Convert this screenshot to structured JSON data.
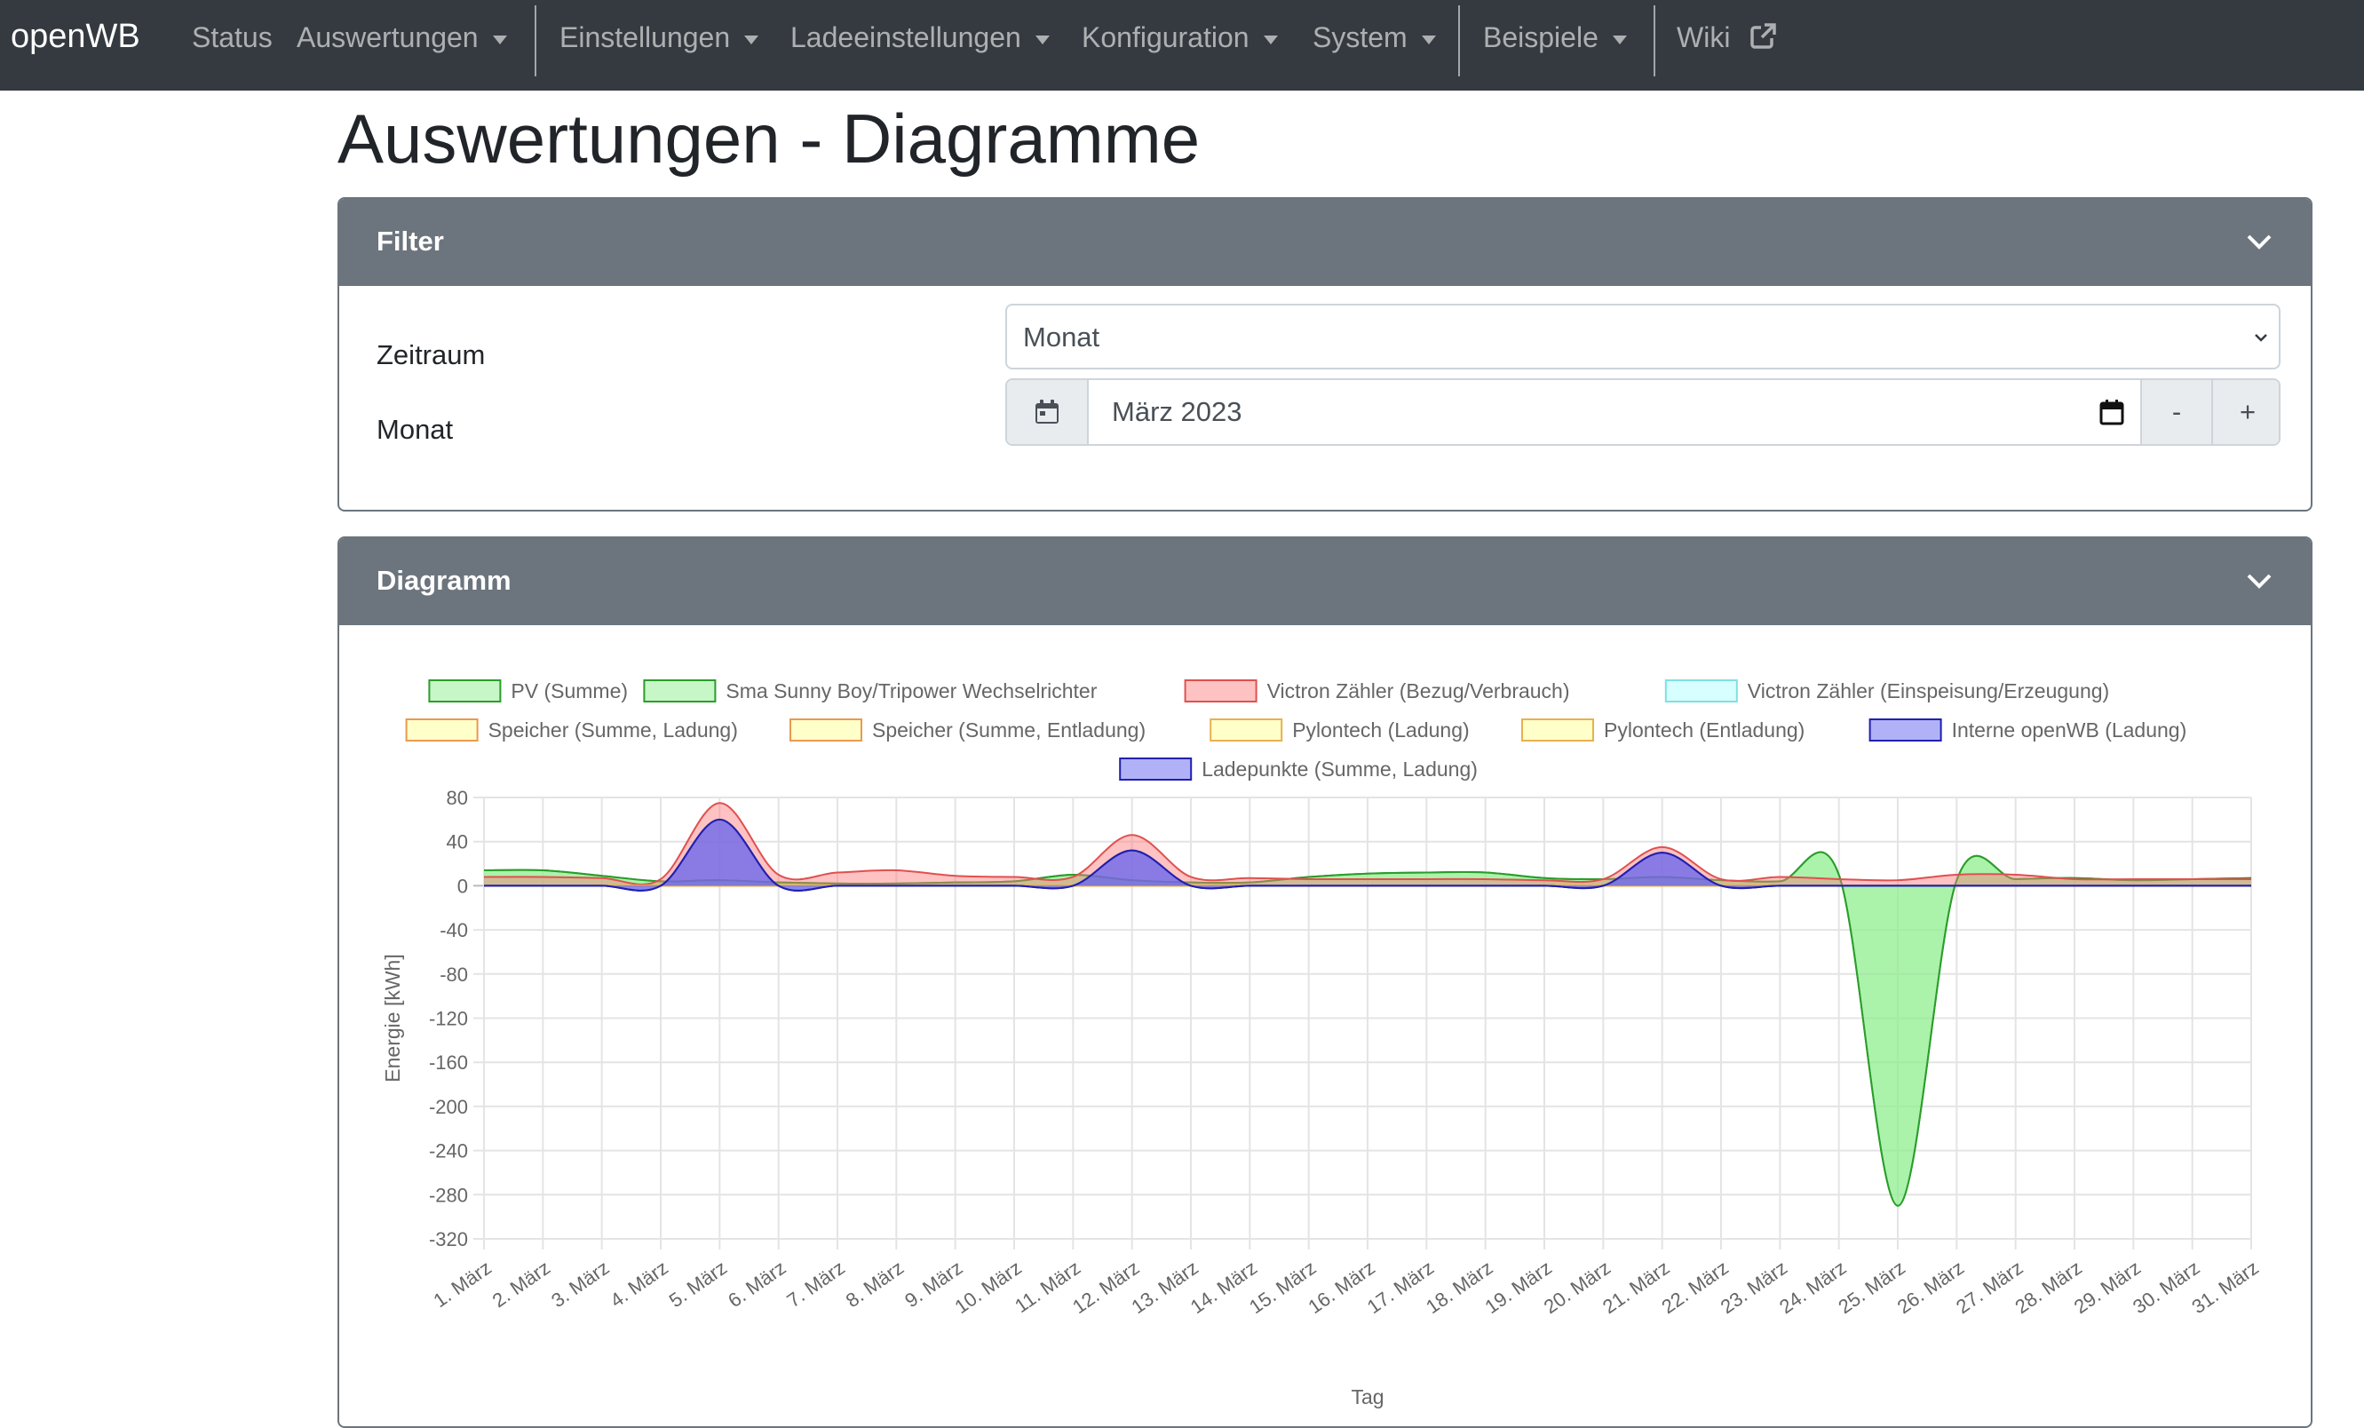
{
  "nav": {
    "brand": "openWB",
    "items": [
      {
        "label": "Status",
        "dropdown": false
      },
      {
        "label": "Auswertungen",
        "dropdown": true
      },
      {
        "label": "Einstellungen",
        "dropdown": true
      },
      {
        "label": "Ladeeinstellungen",
        "dropdown": true
      },
      {
        "label": "Konfiguration",
        "dropdown": true
      },
      {
        "label": "System",
        "dropdown": true
      },
      {
        "label": "Beispiele",
        "dropdown": true
      },
      {
        "label": "Wiki",
        "dropdown": false
      }
    ]
  },
  "page": {
    "title": "Auswertungen - Diagramme"
  },
  "filter": {
    "header": "Filter",
    "zeitraum_label": "Zeitraum",
    "zeitraum_value": "Monat",
    "monat_label": "Monat",
    "monat_value": "März 2023",
    "minus": "-",
    "plus": "+"
  },
  "diagramm": {
    "header": "Diagramm"
  },
  "colors": {
    "navbar": "#343a40",
    "header": "#6c757d"
  },
  "chart_data": {
    "type": "area",
    "xlabel": "Tag",
    "ylabel": "Energie [kWh]",
    "ylim": [
      -320,
      80
    ],
    "yticks": [
      80,
      40,
      0,
      -40,
      -80,
      -120,
      -160,
      -200,
      -240,
      -280,
      -320
    ],
    "grid": true,
    "legend_position": "top",
    "categories": [
      "1. März",
      "2. März",
      "3. März",
      "4. März",
      "5. März",
      "6. März",
      "7. März",
      "8. März",
      "9. März",
      "10. März",
      "11. März",
      "12. März",
      "13. März",
      "14. März",
      "15. März",
      "16. März",
      "17. März",
      "18. März",
      "19. März",
      "20. März",
      "21. März",
      "22. März",
      "23. März",
      "24. März",
      "25. März",
      "26. März",
      "27. März",
      "28. März",
      "29. März",
      "30. März",
      "31. März"
    ],
    "series": [
      {
        "name": "PV (Summe)",
        "fill": "rgba(144,238,144,0.5)",
        "stroke": "#2a9d2a",
        "values": [
          14,
          14,
          9,
          4,
          5,
          3,
          2,
          2,
          3,
          4,
          10,
          5,
          3,
          3,
          8,
          11,
          12,
          12,
          7,
          6,
          8,
          5,
          4,
          10,
          -290,
          5,
          6,
          7,
          5,
          6,
          7
        ]
      },
      {
        "name": "Sma Sunny Boy/Tripower Wechselrichter",
        "fill": "rgba(144,238,144,0.5)",
        "stroke": "#2a9d2a",
        "values": [
          14,
          14,
          9,
          4,
          5,
          3,
          2,
          2,
          3,
          4,
          10,
          5,
          3,
          3,
          8,
          11,
          12,
          12,
          7,
          6,
          8,
          5,
          4,
          10,
          -290,
          5,
          6,
          7,
          5,
          6,
          7
        ]
      },
      {
        "name": "Victron Zähler (Bezug/Verbrauch)",
        "fill": "rgba(255,120,120,0.45)",
        "stroke": "#e05050",
        "values": [
          8,
          8,
          7,
          6,
          75,
          10,
          12,
          14,
          9,
          8,
          8,
          46,
          8,
          7,
          6,
          6,
          6,
          6,
          5,
          6,
          35,
          6,
          8,
          6,
          5,
          10,
          10,
          6,
          6,
          6,
          6
        ]
      },
      {
        "name": "Victron Zähler (Einspeisung/Erzeugung)",
        "fill": "rgba(175,255,255,0.5)",
        "stroke": "#7fe0e0",
        "values": [
          0,
          0,
          0,
          0,
          0,
          0,
          0,
          0,
          0,
          0,
          0,
          0,
          0,
          0,
          0,
          0,
          0,
          0,
          0,
          0,
          0,
          0,
          0,
          0,
          0,
          0,
          0,
          0,
          0,
          0,
          0
        ]
      },
      {
        "name": "Speicher (Summe, Ladung)",
        "fill": "rgba(255,255,150,0.5)",
        "stroke": "#e89a50",
        "values": [
          0,
          0,
          0,
          0,
          0,
          0,
          0,
          0,
          0,
          0,
          0,
          0,
          0,
          0,
          0,
          0,
          0,
          0,
          0,
          0,
          0,
          0,
          0,
          0,
          0,
          0,
          0,
          0,
          0,
          0,
          0
        ]
      },
      {
        "name": "Speicher (Summe, Entladung)",
        "fill": "rgba(255,255,150,0.5)",
        "stroke": "#e89a50",
        "values": [
          0,
          0,
          0,
          0,
          0,
          0,
          0,
          0,
          0,
          0,
          0,
          0,
          0,
          0,
          0,
          0,
          0,
          0,
          0,
          0,
          0,
          0,
          0,
          0,
          0,
          0,
          0,
          0,
          0,
          0,
          0
        ]
      },
      {
        "name": "Pylontech (Ladung)",
        "fill": "rgba(255,255,150,0.5)",
        "stroke": "#e8b050",
        "values": [
          0,
          0,
          0,
          0,
          0,
          0,
          0,
          0,
          0,
          0,
          0,
          0,
          0,
          0,
          0,
          0,
          0,
          0,
          0,
          0,
          0,
          0,
          0,
          0,
          0,
          0,
          0,
          0,
          0,
          0,
          0
        ]
      },
      {
        "name": "Pylontech (Entladung)",
        "fill": "rgba(255,255,150,0.5)",
        "stroke": "#e8b050",
        "values": [
          0,
          0,
          0,
          0,
          0,
          0,
          0,
          0,
          0,
          0,
          0,
          0,
          0,
          0,
          0,
          0,
          0,
          0,
          0,
          0,
          0,
          0,
          0,
          0,
          0,
          0,
          0,
          0,
          0,
          0,
          0
        ]
      },
      {
        "name": "Interne openWB (Ladung)",
        "fill": "rgba(100,100,240,0.5)",
        "stroke": "#2020b0",
        "values": [
          0,
          0,
          0,
          0,
          60,
          0,
          0,
          0,
          0,
          0,
          0,
          32,
          0,
          0,
          0,
          0,
          0,
          0,
          0,
          0,
          30,
          0,
          0,
          0,
          0,
          0,
          0,
          0,
          0,
          0,
          0
        ]
      },
      {
        "name": "Ladepunkte (Summe, Ladung)",
        "fill": "rgba(100,100,240,0.5)",
        "stroke": "#2020b0",
        "values": [
          0,
          0,
          0,
          0,
          60,
          0,
          0,
          0,
          0,
          0,
          0,
          32,
          0,
          0,
          0,
          0,
          0,
          0,
          0,
          0,
          30,
          0,
          0,
          0,
          0,
          0,
          0,
          0,
          0,
          0,
          0
        ]
      }
    ]
  }
}
